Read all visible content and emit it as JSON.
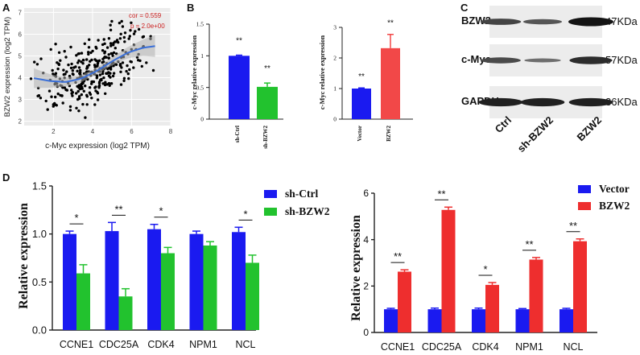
{
  "panel_labels": [
    "A",
    "B",
    "C",
    "D"
  ],
  "colors": {
    "blue": "#1a1af0",
    "green": "#22c22e",
    "red": "#ee2e2e",
    "red2": "#f24848",
    "gray": "#d9d9d9",
    "regression": "#3a6fd8",
    "stat_text": "#cc2020"
  },
  "chart_data": [
    {
      "id": "A",
      "type": "scatter",
      "xlabel": "c-Myc expression (log2 TPM)",
      "ylabel": "BZW2 expression (log2 TPM)",
      "xlim": [
        0.5,
        8
      ],
      "ylim": [
        1.8,
        7.2
      ],
      "xticks": [
        2,
        4,
        6,
        8
      ],
      "yticks": [
        2,
        3,
        4,
        5,
        6,
        7
      ],
      "annotations": [
        "cor = 0.559",
        "p = 2.0e+00"
      ],
      "fit_curve": {
        "x": [
          1,
          1.8,
          2.6,
          3.4,
          4.2,
          5,
          5.8,
          6.6,
          7.2
        ],
        "y": [
          3.98,
          3.85,
          3.8,
          3.95,
          4.3,
          4.75,
          5.15,
          5.38,
          5.45
        ]
      },
      "n_points": 330
    },
    {
      "id": "B-left",
      "type": "bar",
      "categories": [
        "sh-Ctrl",
        "sh-BZW2"
      ],
      "values": [
        1.0,
        0.51
      ],
      "errors": [
        0.01,
        0.06
      ],
      "ylabel": "c-Myc relative expression",
      "ylim": [
        0,
        1.5
      ],
      "yticks": [
        0.0,
        0.5,
        1.0,
        1.5
      ],
      "significance": [
        "**"
      ]
    },
    {
      "id": "B-right",
      "type": "bar",
      "categories": [
        "Vector",
        "BZW2"
      ],
      "values": [
        1.0,
        2.32
      ],
      "errors": [
        0.02,
        0.45
      ],
      "ylabel": "c-Myc relative expression",
      "ylim": [
        0,
        3
      ],
      "yticks": [
        0,
        1,
        2,
        3
      ],
      "significance": [
        "**"
      ]
    },
    {
      "id": "D-left",
      "type": "bar",
      "categories": [
        "CCNE1",
        "CDC25A",
        "CDK4",
        "NPM1",
        "NCL"
      ],
      "series": [
        {
          "name": "sh-Ctrl",
          "values": [
            1.0,
            1.03,
            1.05,
            1.0,
            1.02
          ],
          "errors": [
            0.03,
            0.09,
            0.05,
            0.03,
            0.05
          ]
        },
        {
          "name": "sh-BZW2",
          "values": [
            0.59,
            0.35,
            0.8,
            0.88,
            0.7
          ],
          "errors": [
            0.09,
            0.08,
            0.06,
            0.04,
            0.08
          ]
        }
      ],
      "significance": [
        "*",
        "**",
        "*",
        "",
        "*"
      ],
      "ylabel": "Relative expression",
      "ylim": [
        0,
        1.5
      ],
      "yticks": [
        "0.0",
        "0.5",
        "1.0",
        "1.5"
      ],
      "legend": "top-right"
    },
    {
      "id": "D-right",
      "type": "bar",
      "categories": [
        "CCNE1",
        "CDC25A",
        "CDK4",
        "NPM1",
        "NCL"
      ],
      "series": [
        {
          "name": "Vector",
          "values": [
            1.0,
            1.0,
            1.0,
            1.0,
            1.0
          ],
          "errors": [
            0.04,
            0.05,
            0.05,
            0.03,
            0.04
          ]
        },
        {
          "name": "BZW2",
          "values": [
            2.62,
            5.28,
            2.05,
            3.14,
            3.93
          ],
          "errors": [
            0.08,
            0.12,
            0.1,
            0.09,
            0.1
          ]
        }
      ],
      "significance": [
        "**",
        "**",
        "*",
        "**",
        "**"
      ],
      "ylabel": "Relative expression",
      "ylim": [
        0,
        6
      ],
      "yticks": [
        "0",
        "2",
        "4",
        "6"
      ],
      "legend": "top-right"
    }
  ],
  "western_blot": {
    "lanes": [
      "Ctrl",
      "sh-BZW2",
      "BZW2"
    ],
    "rows": [
      {
        "protein": "BZW2",
        "size": "47KDa",
        "intensity": [
          0.6,
          0.45,
          1.0
        ]
      },
      {
        "protein": "c-Myc",
        "size": "57KDa",
        "intensity": [
          0.55,
          0.25,
          0.8
        ]
      },
      {
        "protein": "GAPDH",
        "size": "36KDa",
        "intensity": [
          0.9,
          0.9,
          0.9
        ]
      }
    ]
  }
}
